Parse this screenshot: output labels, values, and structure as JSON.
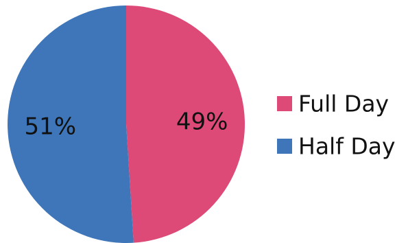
{
  "chart_data": {
    "type": "pie",
    "series": [
      {
        "name": "Full Day",
        "value": 49,
        "label": "49%",
        "color": "#DE4A78"
      },
      {
        "name": "Half Day",
        "value": 51,
        "label": "51%",
        "color": "#3E76B9"
      }
    ],
    "legend": {
      "position": "right",
      "entries": [
        "Full Day",
        "Half Day"
      ]
    },
    "start_angle": "12 o'clock",
    "direction": "clockwise"
  }
}
